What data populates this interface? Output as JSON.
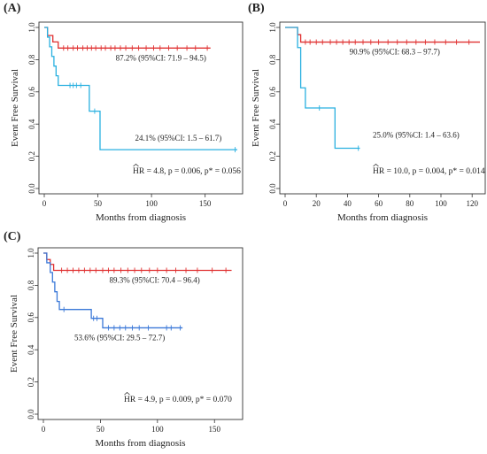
{
  "panels": [
    {
      "id": "a",
      "label": "(A)",
      "hr_text": "HR = 4.8, p = 0.006, p* = 0.056",
      "chart_data": {
        "type": "line",
        "subtype": "kaplan-meier",
        "title": "",
        "xlabel": "Months from diagnosis",
        "ylabel": "Event Free Survival",
        "xlim": [
          0,
          180
        ],
        "ylim": [
          0,
          1.0
        ],
        "xticks": [
          0,
          50,
          100,
          150
        ],
        "yticks": [
          0.0,
          0.2,
          0.4,
          0.6,
          0.8,
          1.0
        ],
        "series": [
          {
            "color": "#e03030",
            "steps": [
              [
                0,
                1.0
              ],
              [
                3,
                0.95
              ],
              [
                8,
                0.91
              ],
              [
                13,
                0.872
              ],
              [
                155,
                0.872
              ]
            ],
            "censors": [
              [
                18,
                0.872
              ],
              [
                22,
                0.872
              ],
              [
                27,
                0.872
              ],
              [
                31,
                0.872
              ],
              [
                36,
                0.872
              ],
              [
                40,
                0.872
              ],
              [
                44,
                0.872
              ],
              [
                48,
                0.872
              ],
              [
                53,
                0.872
              ],
              [
                57,
                0.872
              ],
              [
                62,
                0.872
              ],
              [
                66,
                0.872
              ],
              [
                71,
                0.872
              ],
              [
                76,
                0.872
              ],
              [
                82,
                0.872
              ],
              [
                88,
                0.872
              ],
              [
                95,
                0.872
              ],
              [
                102,
                0.872
              ],
              [
                108,
                0.872
              ],
              [
                116,
                0.872
              ],
              [
                124,
                0.872
              ],
              [
                133,
                0.872
              ],
              [
                141,
                0.872
              ],
              [
                152,
                0.872
              ]
            ],
            "annotation": "87.2% (95%CI: 71.9 – 94.5)"
          },
          {
            "color": "#29b0e0",
            "steps": [
              [
                0,
                1.0
              ],
              [
                3,
                0.94
              ],
              [
                5,
                0.88
              ],
              [
                7,
                0.82
              ],
              [
                9,
                0.76
              ],
              [
                11,
                0.7
              ],
              [
                13,
                0.64
              ],
              [
                38,
                0.64
              ],
              [
                42,
                0.48
              ],
              [
                50,
                0.48
              ],
              [
                52,
                0.241
              ],
              [
                180,
                0.241
              ]
            ],
            "censors": [
              [
                24,
                0.64
              ],
              [
                27,
                0.64
              ],
              [
                30,
                0.64
              ],
              [
                34,
                0.64
              ],
              [
                47,
                0.48
              ],
              [
                178,
                0.241
              ]
            ],
            "annotation": "24.1% (95%CI: 1.5 – 61.7)"
          }
        ]
      }
    },
    {
      "id": "b",
      "label": "(B)",
      "hr_text": "HR = 10.0, p = 0.004, p* = 0.014",
      "chart_data": {
        "type": "line",
        "subtype": "kaplan-meier",
        "title": "",
        "xlabel": "Months from diagnosis",
        "ylabel": "Event Free Survival",
        "xlim": [
          0,
          125
        ],
        "ylim": [
          0,
          1.0
        ],
        "xticks": [
          0,
          20,
          40,
          60,
          80,
          100,
          120
        ],
        "yticks": [
          0.0,
          0.2,
          0.4,
          0.6,
          0.8,
          1.0
        ],
        "series": [
          {
            "color": "#e03030",
            "steps": [
              [
                0,
                1.0
              ],
              [
                8,
                0.955
              ],
              [
                10,
                0.909
              ],
              [
                125,
                0.909
              ]
            ],
            "censors": [
              [
                13,
                0.909
              ],
              [
                16,
                0.909
              ],
              [
                20,
                0.909
              ],
              [
                24,
                0.909
              ],
              [
                29,
                0.909
              ],
              [
                33,
                0.909
              ],
              [
                37,
                0.909
              ],
              [
                41,
                0.909
              ],
              [
                45,
                0.909
              ],
              [
                50,
                0.909
              ],
              [
                55,
                0.909
              ],
              [
                60,
                0.909
              ],
              [
                66,
                0.909
              ],
              [
                72,
                0.909
              ],
              [
                78,
                0.909
              ],
              [
                84,
                0.909
              ],
              [
                90,
                0.909
              ],
              [
                96,
                0.909
              ],
              [
                103,
                0.909
              ],
              [
                110,
                0.909
              ],
              [
                118,
                0.909
              ]
            ],
            "annotation": "90.9% (95%CI: 68.3 – 97.7)"
          },
          {
            "color": "#29b0e0",
            "steps": [
              [
                0,
                1.0
              ],
              [
                8,
                0.875
              ],
              [
                10,
                0.625
              ],
              [
                13,
                0.5
              ],
              [
                30,
                0.5
              ],
              [
                32,
                0.25
              ],
              [
                48,
                0.25
              ]
            ],
            "censors": [
              [
                22,
                0.5
              ],
              [
                47,
                0.25
              ]
            ],
            "annotation": "25.0% (95%CI: 1.4 – 63.6)"
          }
        ]
      }
    },
    {
      "id": "c",
      "label": "(C)",
      "hr_text": "HR = 4.9, p = 0.009, p* = 0.070",
      "chart_data": {
        "type": "line",
        "subtype": "kaplan-meier",
        "title": "",
        "xlabel": "Months from diagnosis",
        "ylabel": "Event Free Survival",
        "xlim": [
          0,
          170
        ],
        "ylim": [
          0,
          1.0
        ],
        "xticks": [
          0,
          50,
          100,
          150
        ],
        "yticks": [
          0.0,
          0.2,
          0.4,
          0.6,
          0.8,
          1.0
        ],
        "series": [
          {
            "color": "#e03030",
            "steps": [
              [
                0,
                1.0
              ],
              [
                3,
                0.96
              ],
              [
                6,
                0.93
              ],
              [
                9,
                0.893
              ],
              [
                165,
                0.893
              ]
            ],
            "censors": [
              [
                16,
                0.893
              ],
              [
                21,
                0.893
              ],
              [
                26,
                0.893
              ],
              [
                31,
                0.893
              ],
              [
                36,
                0.893
              ],
              [
                41,
                0.893
              ],
              [
                46,
                0.893
              ],
              [
                52,
                0.893
              ],
              [
                57,
                0.893
              ],
              [
                62,
                0.893
              ],
              [
                68,
                0.893
              ],
              [
                74,
                0.893
              ],
              [
                80,
                0.893
              ],
              [
                86,
                0.893
              ],
              [
                93,
                0.893
              ],
              [
                100,
                0.893
              ],
              [
                108,
                0.893
              ],
              [
                116,
                0.893
              ],
              [
                125,
                0.893
              ],
              [
                135,
                0.893
              ],
              [
                148,
                0.893
              ],
              [
                160,
                0.893
              ]
            ],
            "annotation": "89.3% (95%CI: 70.4 – 96.4)"
          },
          {
            "color": "#3a78d8",
            "steps": [
              [
                0,
                1.0
              ],
              [
                3,
                0.94
              ],
              [
                6,
                0.88
              ],
              [
                8,
                0.82
              ],
              [
                10,
                0.76
              ],
              [
                12,
                0.7
              ],
              [
                14,
                0.65
              ],
              [
                40,
                0.65
              ],
              [
                42,
                0.595
              ],
              [
                50,
                0.595
              ],
              [
                52,
                0.536
              ],
              [
                122,
                0.536
              ]
            ],
            "censors": [
              [
                18,
                0.65
              ],
              [
                44,
                0.595
              ],
              [
                47,
                0.595
              ],
              [
                57,
                0.536
              ],
              [
                62,
                0.536
              ],
              [
                67,
                0.536
              ],
              [
                72,
                0.536
              ],
              [
                78,
                0.536
              ],
              [
                84,
                0.536
              ],
              [
                92,
                0.536
              ],
              [
                108,
                0.536
              ],
              [
                112,
                0.536
              ],
              [
                120,
                0.536
              ]
            ],
            "annotation": "53.6% (95%CI: 29.5 – 72.7)"
          }
        ]
      }
    }
  ]
}
